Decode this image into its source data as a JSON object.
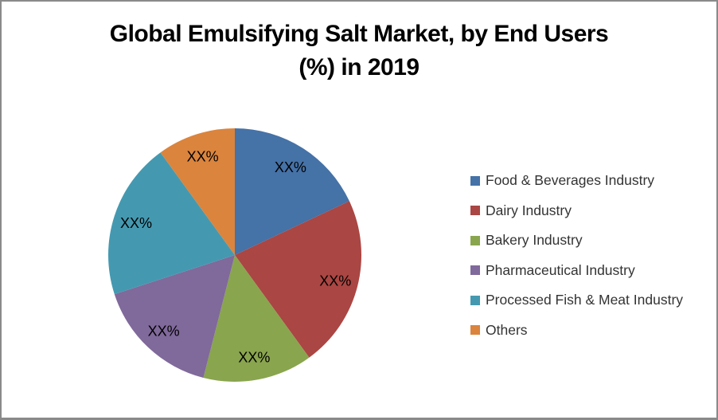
{
  "header": {
    "title_line1": "Global Emulsifying Salt Market, by End Users",
    "title_line2": "(%) in 2019"
  },
  "chart_data": {
    "type": "pie",
    "title": "Global Emulsifying Salt Market, by End Users (%) in 2019",
    "unit": "%",
    "start_angle_deg": 0,
    "direction": "clockwise",
    "legend_position": "right",
    "data_labels_masked": true,
    "slices": [
      {
        "label": "Food & Beverages Industry",
        "display_label": "XX%",
        "value_pct_estimated": 18,
        "color": "#4572A7"
      },
      {
        "label": "Dairy Industry",
        "display_label": "XX%",
        "value_pct_estimated": 22,
        "color": "#AA4643"
      },
      {
        "label": "Bakery Industry",
        "display_label": "XX%",
        "value_pct_estimated": 14,
        "color": "#89A54E"
      },
      {
        "label": "Pharmaceutical Industry",
        "display_label": "XX%",
        "value_pct_estimated": 16,
        "color": "#80699B"
      },
      {
        "label": "Processed Fish & Meat Industry",
        "display_label": "XX%",
        "value_pct_estimated": 20,
        "color": "#4499B0"
      },
      {
        "label": "Others",
        "display_label": "XX%",
        "value_pct_estimated": 10,
        "color": "#DB843D"
      }
    ]
  }
}
